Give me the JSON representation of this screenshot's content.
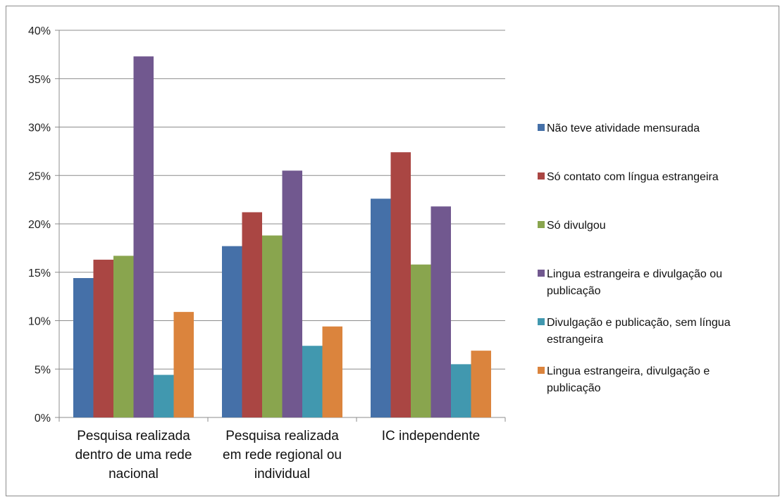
{
  "chart_data": {
    "type": "bar",
    "categories": [
      [
        "Pesquisa realizada",
        "dentro de uma rede",
        "nacional"
      ],
      [
        "Pesquisa realizada",
        "em rede regional ou",
        "individual"
      ],
      [
        "IC independente"
      ]
    ],
    "series": [
      {
        "name": [
          "Não teve atividade mensurada"
        ],
        "color": "#4570A8",
        "values": [
          14.4,
          17.7,
          22.6
        ]
      },
      {
        "name": [
          "Só contato com língua estrangeira"
        ],
        "color": "#AA4643",
        "values": [
          16.3,
          21.2,
          27.4
        ]
      },
      {
        "name": [
          "Só divulgou"
        ],
        "color": "#89A54E",
        "values": [
          16.7,
          18.8,
          15.8
        ]
      },
      {
        "name": [
          "Lingua estrangeira e divulgação ou",
          "publicação"
        ],
        "color": "#71588F",
        "values": [
          37.3,
          25.5,
          21.8
        ]
      },
      {
        "name": [
          "Divulgação e publicação, sem língua",
          "estrangeira"
        ],
        "color": "#4198AF",
        "values": [
          4.4,
          7.4,
          5.5
        ]
      },
      {
        "name": [
          "Lingua estrangeira, divulgação e",
          "publicação"
        ],
        "color": "#DB843D",
        "values": [
          10.9,
          9.4,
          6.9
        ]
      }
    ],
    "ylim": [
      0,
      40
    ],
    "yticks": [
      "0%",
      "5%",
      "10%",
      "15%",
      "20%",
      "25%",
      "30%",
      "35%",
      "40%"
    ],
    "grid": true,
    "legend": "right"
  }
}
